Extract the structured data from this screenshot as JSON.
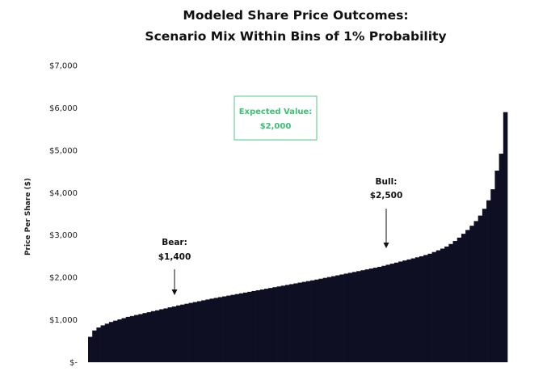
{
  "chart_data": {
    "type": "bar",
    "title_lines": [
      "Modeled Share Price Outcomes:",
      "Scenario Mix Within Bins of 1% Probability"
    ],
    "ylabel": "Price Per Share ($)",
    "xlabel": "",
    "ylim": [
      0,
      7000
    ],
    "y_ticks": [
      {
        "value": 0,
        "label": "$-"
      },
      {
        "value": 1000,
        "label": "$1,000"
      },
      {
        "value": 2000,
        "label": "$2,000"
      },
      {
        "value": 3000,
        "label": "$3,000"
      },
      {
        "value": 4000,
        "label": "$4,000"
      },
      {
        "value": 5000,
        "label": "$5,000"
      },
      {
        "value": 6000,
        "label": "$6,000"
      },
      {
        "value": 7000,
        "label": "$7,000"
      }
    ],
    "grid": false,
    "bar_color": "#0f0f23",
    "bins": 100,
    "values": [
      600,
      750,
      820,
      870,
      910,
      950,
      980,
      1010,
      1040,
      1070,
      1090,
      1115,
      1135,
      1160,
      1180,
      1205,
      1225,
      1250,
      1270,
      1295,
      1315,
      1340,
      1360,
      1380,
      1400,
      1420,
      1440,
      1460,
      1480,
      1500,
      1518,
      1536,
      1554,
      1572,
      1590,
      1608,
      1626,
      1644,
      1662,
      1680,
      1698,
      1716,
      1734,
      1752,
      1770,
      1788,
      1806,
      1824,
      1842,
      1860,
      1878,
      1896,
      1914,
      1932,
      1950,
      1970,
      1990,
      2010,
      2030,
      2050,
      2070,
      2090,
      2110,
      2130,
      2150,
      2170,
      2190,
      2210,
      2230,
      2250,
      2275,
      2300,
      2325,
      2350,
      2375,
      2400,
      2425,
      2450,
      2475,
      2500,
      2530,
      2560,
      2600,
      2640,
      2680,
      2730,
      2790,
      2860,
      2940,
      3030,
      3120,
      3220,
      3330,
      3460,
      3620,
      3820,
      4080,
      4520,
      4920,
      5900
    ],
    "annotations": [
      {
        "name": "bear",
        "label": "Bear:",
        "value_label": "$1,400",
        "bin": 20,
        "arrow_from": 1700,
        "arrow_to": 1450
      },
      {
        "name": "bull",
        "label": "Bull:",
        "value_label": "$2,500",
        "bin": 73,
        "arrow_from": 3600,
        "arrow_to": 2630
      }
    ],
    "expected_value": {
      "label": "Expected Value:",
      "value_label": "$2,000",
      "color": "#3bbf73"
    }
  }
}
